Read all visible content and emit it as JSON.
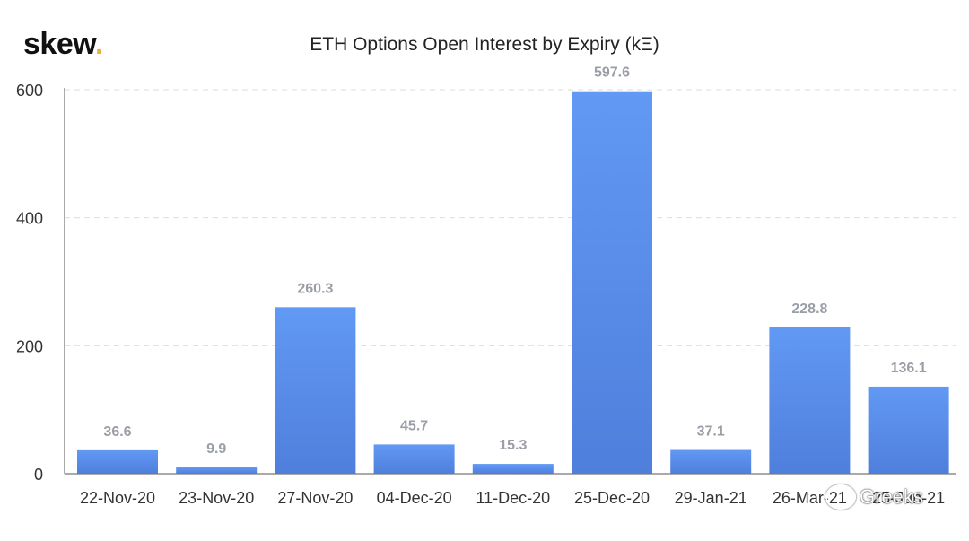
{
  "brand": {
    "name": "skew",
    "dot": "."
  },
  "watermark": {
    "text": "Greeks",
    "icon": "wechat-icon"
  },
  "chart_data": {
    "type": "bar",
    "title": "ETH Options Open Interest by Expiry (kΞ)",
    "xlabel": "",
    "ylabel": "",
    "categories": [
      "22-Nov-20",
      "23-Nov-20",
      "27-Nov-20",
      "04-Dec-20",
      "11-Dec-20",
      "25-Dec-20",
      "29-Jan-21",
      "26-Mar-21",
      "25-Jun-21"
    ],
    "values": [
      36.6,
      9.9,
      260.3,
      45.7,
      15.3,
      597.6,
      37.1,
      228.8,
      136.1
    ],
    "data_labels": [
      "36.6",
      "9.9",
      "260.3",
      "45.7",
      "15.3",
      "597.6",
      "37.1",
      "228.8",
      "136.1"
    ],
    "ylim": [
      0,
      600
    ],
    "yticks": [
      0,
      200,
      400,
      600
    ],
    "grid": true,
    "legend": "none",
    "colors": {
      "bar_top": "#6199f4",
      "bar_bottom": "#4f7fdc",
      "grid": "#dddddd",
      "axis": "#555555"
    }
  }
}
